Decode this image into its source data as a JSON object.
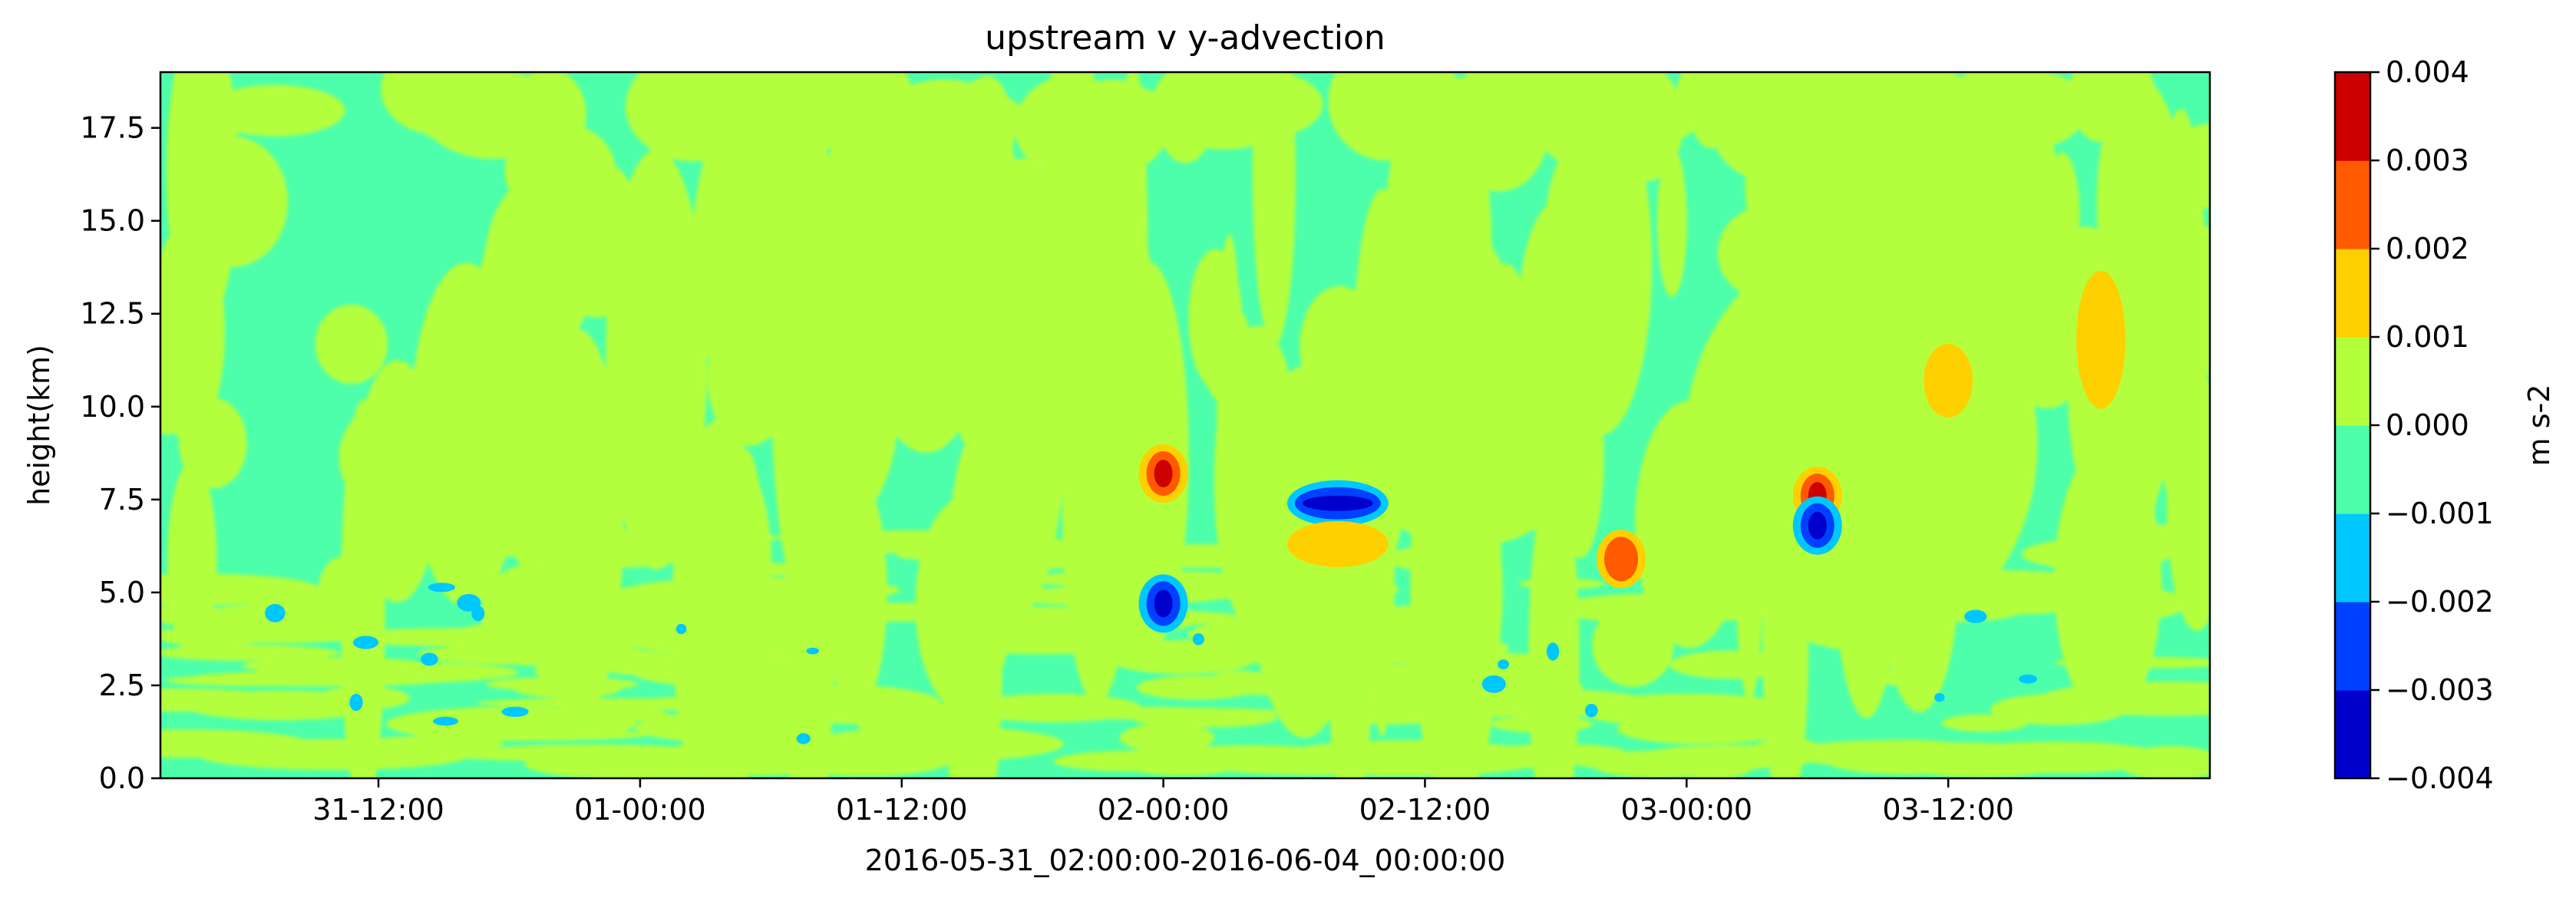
{
  "chart_data": {
    "type": "heatmap",
    "subtype": "filled-contour",
    "title": "upstream v y-advection",
    "xlabel": "2016-05-31_02:00:00-2016-06-04_00:00:00",
    "ylabel": "height(km)",
    "colorbar_label": "m s-2",
    "x_ticks": [
      "31-12:00",
      "01-00:00",
      "01-12:00",
      "02-00:00",
      "02-12:00",
      "03-00:00",
      "03-12:00"
    ],
    "y_ticks": [
      "0.0",
      "2.5",
      "5.0",
      "7.5",
      "10.0",
      "12.5",
      "15.0",
      "17.5"
    ],
    "ylim": [
      0,
      19
    ],
    "colorbar": {
      "levels": [
        -0.004,
        -0.003,
        -0.002,
        -0.001,
        0.0,
        0.001,
        0.002,
        0.003,
        0.004
      ],
      "tick_labels": [
        "−0.004",
        "−0.003",
        "−0.002",
        "−0.001",
        "0.000",
        "0.001",
        "0.002",
        "0.003",
        "0.004"
      ],
      "colors": [
        "#0000cd",
        "#0040ff",
        "#00c8ff",
        "#4dffaa",
        "#b4ff3c",
        "#ffd000",
        "#ff5a00",
        "#cd0000"
      ]
    },
    "background_band": "0.000 to -0.001",
    "features": [
      {
        "label": "positive maximum",
        "time": "02-00:00",
        "height_km": 8.2,
        "value_band": "0.003 to 0.004"
      },
      {
        "label": "negative minimum",
        "time": "02-00:00",
        "height_km": 4.7,
        "value_band": "-0.004 to -0.003"
      },
      {
        "label": "negative band",
        "time": "02-08:00",
        "height_km": 7.4,
        "value_band": "-0.004 to -0.003"
      },
      {
        "label": "positive band",
        "time": "02-08:00",
        "height_km": 6.3,
        "value_band": "0.001 to 0.002"
      },
      {
        "label": "positive maximum",
        "time": "03-06:00",
        "height_km": 7.6,
        "value_band": "0.003 to 0.004"
      },
      {
        "label": "negative minimum",
        "time": "03-06:00",
        "height_km": 6.8,
        "value_band": "-0.004 to -0.003"
      },
      {
        "label": "positive cluster",
        "time": "02-21:00",
        "height_km": 5.9,
        "value_band": "0.002 to 0.003"
      },
      {
        "label": "positive column",
        "time": "03-19:00",
        "height_km": 11.8,
        "value_band": "0.001 to 0.002"
      },
      {
        "label": "positive patch",
        "time": "03-12:00",
        "height_km": 10.7,
        "value_band": "0.001 to 0.002"
      }
    ]
  }
}
